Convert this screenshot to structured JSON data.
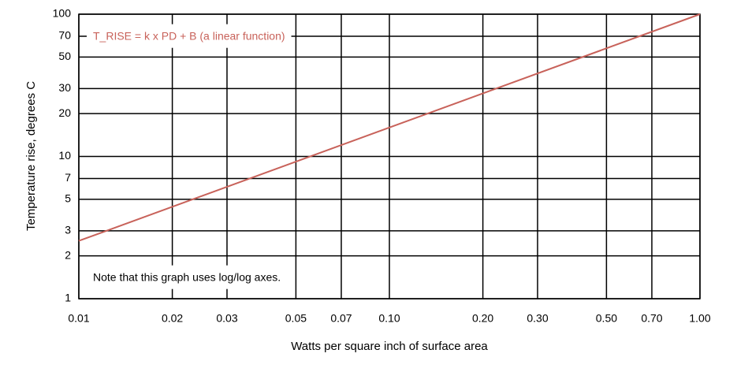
{
  "chart_data": {
    "type": "line",
    "xlabel": "Watts per square inch of surface area",
    "ylabel": "Temperature rise, degrees C",
    "x": [
      0.01,
      1
    ],
    "values": [
      2.55,
      100
    ],
    "color": "#c8625a",
    "xlog": true,
    "ylog": true,
    "grid": true,
    "xlim": [
      0.01,
      1
    ],
    "ylim": [
      1,
      100
    ],
    "xticks": [
      0.01,
      0.02,
      0.03,
      0.05,
      0.07,
      {
        "value": 0.1,
        "label": "0.10"
      },
      {
        "value": 0.2,
        "label": "0.20"
      },
      {
        "value": 0.3,
        "label": "0.30"
      },
      {
        "value": 0.5,
        "label": "0.50"
      },
      {
        "value": 0.7,
        "label": "0.70"
      },
      {
        "value": 1,
        "label": "1.00"
      }
    ],
    "yticks": [
      1,
      2,
      3,
      5,
      7,
      10,
      20,
      30,
      50,
      70,
      100
    ],
    "annotations": [
      "T_RISE = k x PD + B (a linear function)",
      "Note that this graph uses log/log axes."
    ]
  }
}
